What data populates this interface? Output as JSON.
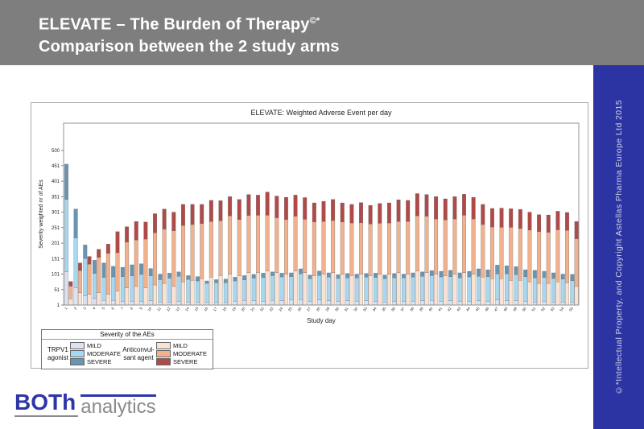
{
  "header": {
    "line1": "ELEVATE – The Burden of Therapy",
    "copyright_mark": "©*",
    "line2": "Comparison  between the 2 study arms"
  },
  "sidebar": {
    "text": "©*Intellectual Property, and Copyright Astellas Pharma Europe Ltd 2015"
  },
  "logo": {
    "part1": "BOTh",
    "part2": "analytics"
  },
  "colors": {
    "header_bg": "#7e7e7e",
    "header_text": "#ffffff",
    "sidebar_bg": "#2c34a4",
    "sidebar_text": "#ccd0dd",
    "logo_blue": "#2d35a8",
    "logo_gray": "#8a8a8a"
  },
  "chart_data": {
    "type": "bar",
    "stacked": true,
    "grouped_pairs": true,
    "title": "ELEVATE: Weighted Adverse Event per day",
    "xlabel": "Study day",
    "ylabel": "Severity weighted nr of AEs",
    "ylim": [
      1,
      500
    ],
    "yticks": [
      1,
      51,
      101,
      151,
      201,
      251,
      301,
      351,
      401,
      451,
      500
    ],
    "grid": false,
    "legend": {
      "title": "Severity of the AEs",
      "position": "bottom-left",
      "severities": [
        "MILD",
        "MODERATE",
        "SEVERE"
      ],
      "groups": [
        {
          "line1": "TRPV1",
          "line2": "agonist"
        },
        {
          "line1": "Anticonvul-",
          "line2": "sant agent"
        }
      ]
    },
    "categories": [
      1,
      2,
      3,
      4,
      5,
      6,
      7,
      8,
      9,
      10,
      11,
      12,
      13,
      14,
      15,
      16,
      17,
      18,
      19,
      20,
      21,
      22,
      23,
      24,
      25,
      26,
      27,
      28,
      29,
      30,
      31,
      32,
      33,
      34,
      35,
      36,
      37,
      38,
      39,
      40,
      41,
      42,
      43,
      44,
      45,
      46,
      47,
      48,
      49,
      50,
      51,
      52,
      53,
      54,
      55
    ],
    "series": [
      {
        "name": "TRPV1 agonist MILD",
        "color": "#dbe3f5",
        "values": [
          107,
          55,
          30,
          22,
          15,
          15,
          12,
          12,
          12,
          14,
          10,
          10,
          12,
          10,
          10,
          8,
          8,
          8,
          12,
          15,
          14,
          12,
          15,
          14,
          16,
          18,
          12,
          16,
          14,
          12,
          14,
          12,
          14,
          12,
          10,
          12,
          12,
          12,
          14,
          15,
          12,
          14,
          12,
          12,
          14,
          12,
          16,
          14,
          14,
          12,
          10,
          12,
          10,
          10,
          8
        ]
      },
      {
        "name": "TRPV1 agonist MODERATE",
        "color": "#a7d8f1",
        "values": [
          234,
          162,
          120,
          80,
          74,
          76,
          80,
          82,
          87,
          80,
          72,
          77,
          81,
          73,
          68,
          62,
          64,
          64,
          66,
          66,
          73,
          77,
          80,
          77,
          76,
          83,
          73,
          80,
          76,
          74,
          74,
          76,
          76,
          77,
          75,
          76,
          76,
          78,
          79,
          80,
          79,
          78,
          76,
          79,
          79,
          80,
          85,
          87,
          84,
          80,
          78,
          77,
          76,
          74,
          71
        ]
      },
      {
        "name": "TRPV1 agonist SEVERE",
        "color": "#6995b3",
        "values": [
          114,
          93,
          44,
          43,
          47,
          34,
          30,
          36,
          34,
          24,
          18,
          16,
          14,
          12,
          14,
          8,
          10,
          12,
          12,
          14,
          12,
          14,
          12,
          12,
          12,
          16,
          12,
          14,
          14,
          12,
          14,
          12,
          12,
          14,
          12,
          14,
          12,
          14,
          14,
          16,
          18,
          20,
          16,
          18,
          24,
          22,
          28,
          26,
          26,
          22,
          24,
          20,
          18,
          16,
          20
        ]
      },
      {
        "name": "Anticonvulsant agent MILD",
        "color": "#fbe3d4",
        "values": [
          20,
          40,
          35,
          40,
          35,
          45,
          55,
          60,
          55,
          65,
          70,
          60,
          75,
          80,
          85,
          90,
          95,
          100,
          95,
          105,
          105,
          110,
          105,
          100,
          110,
          105,
          95,
          100,
          105,
          100,
          95,
          100,
          95,
          100,
          100,
          105,
          100,
          110,
          105,
          100,
          95,
          100,
          105,
          100,
          90,
          85,
          85,
          80,
          80,
          75,
          70,
          70,
          75,
          72,
          60
        ]
      },
      {
        "name": "Anticonvulsant agent MODERATE",
        "color": "#f1b18d",
        "values": [
          41,
          71,
          97,
          114,
          132,
          124,
          148,
          150,
          158,
          168,
          175,
          180,
          182,
          180,
          178,
          180,
          177,
          188,
          181,
          184,
          185,
          180,
          177,
          176,
          177,
          172,
          173,
          170,
          168,
          168,
          170,
          166,
          167,
          164,
          165,
          165,
          170,
          178,
          182,
          178,
          180,
          178,
          185,
          178,
          170,
          167,
          166,
          171,
          167,
          167,
          167,
          165,
          168,
          169,
          154
        ]
      },
      {
        "name": "Anticonvulsant agent SEVERE",
        "color": "#af4a48",
        "values": [
          15,
          25,
          25,
          26,
          30,
          68,
          50,
          60,
          55,
          62,
          65,
          60,
          68,
          65,
          62,
          68,
          65,
          62,
          65,
          68,
          65,
          75,
          70,
          72,
          68,
          70,
          62,
          65,
          68,
          62,
          60,
          65,
          60,
          64,
          65,
          70,
          68,
          72,
          70,
          72,
          68,
          72,
          68,
          70,
          65,
          60,
          62,
          60,
          62,
          58,
          55,
          56,
          60,
          58,
          56
        ]
      }
    ]
  }
}
